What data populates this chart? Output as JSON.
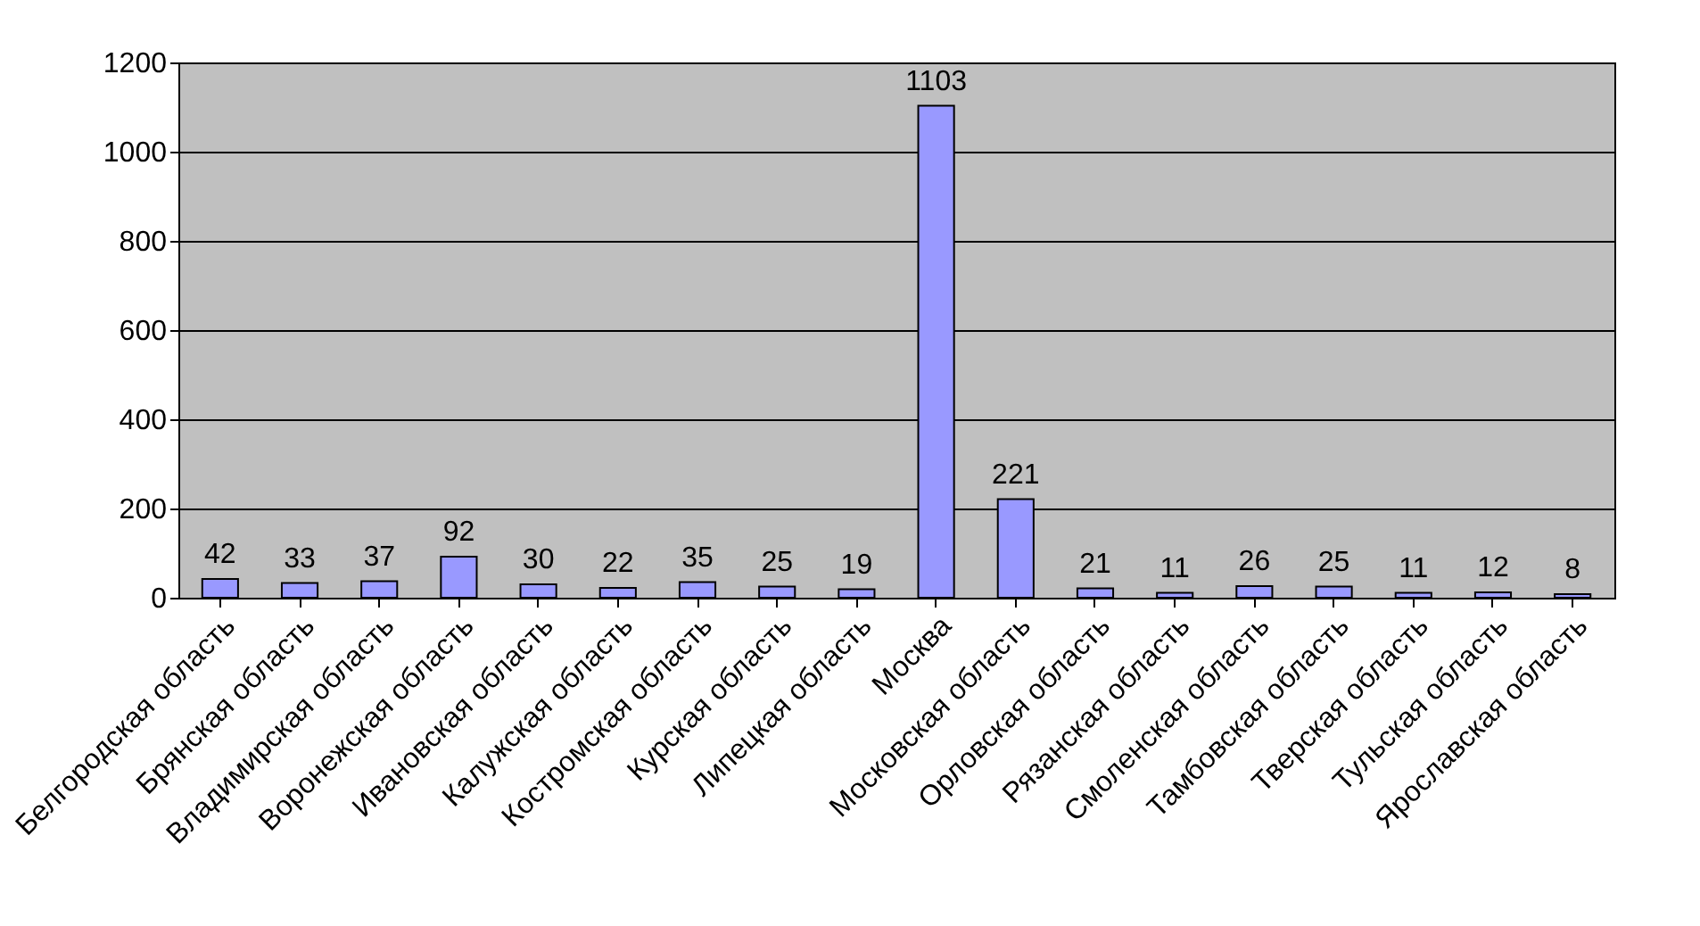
{
  "chart_data": {
    "type": "bar",
    "categories": [
      "Белгородская область",
      "Брянская область",
      "Владимирская область",
      "Воронежская область",
      "Ивановская область",
      "Калужская область",
      "Костромская область",
      "Курская область",
      "Липецкая область",
      "Москва",
      "Московская область",
      "Орловская область",
      "Рязанская область",
      "Смоленская область",
      "Тамбовская область",
      "Тверская область",
      "Тульская область",
      "Ярославская область"
    ],
    "values": [
      42,
      33,
      37,
      92,
      30,
      22,
      35,
      25,
      19,
      1103,
      221,
      21,
      11,
      26,
      25,
      11,
      12,
      8
    ],
    "color": "#9999ff",
    "ylim": [
      0,
      1200
    ],
    "yticks": [
      0,
      200,
      400,
      600,
      800,
      1000,
      1200
    ],
    "grid": "y",
    "data_labels": true
  }
}
